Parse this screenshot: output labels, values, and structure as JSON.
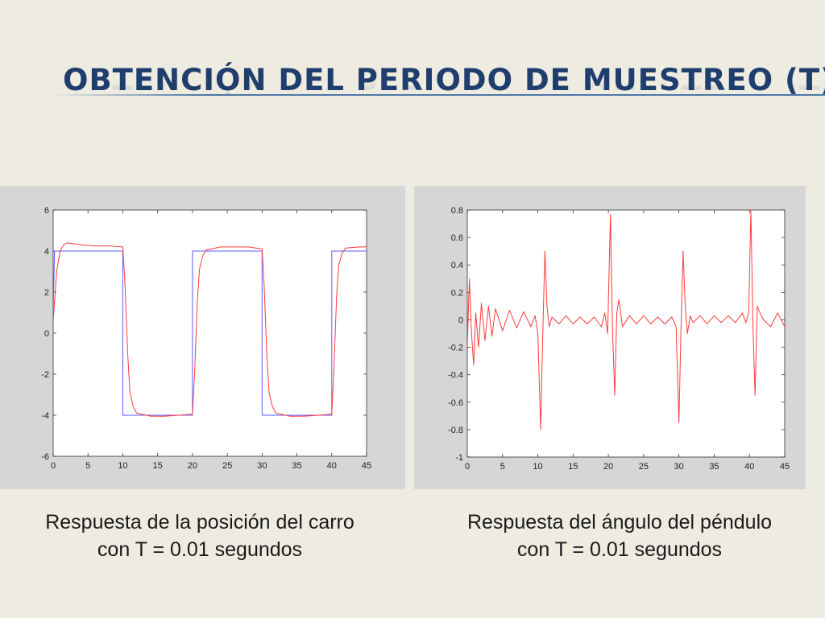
{
  "slide": {
    "title": "OBTENCIÓN DEL PERIODO DE MUESTREO (T)"
  },
  "colors": {
    "background": "#eeece1",
    "title": "#1f3e6e",
    "panel": "#d6d6d6",
    "reference": "#5b5bff",
    "response": "#ff3b3b"
  },
  "captions": {
    "left": {
      "line1": "Respuesta de la posición del carro",
      "line2": "con T = 0.01 segundos"
    },
    "right": {
      "line1": "Respuesta del ángulo del péndulo",
      "line2": "con T = 0.01 segundos"
    }
  },
  "chart_data": [
    {
      "type": "line",
      "title": "",
      "xlabel": "",
      "ylabel": "",
      "xlim": [
        0,
        45
      ],
      "ylim": [
        -6,
        6
      ],
      "xticks": [
        0,
        5,
        10,
        15,
        20,
        25,
        30,
        35,
        40,
        45
      ],
      "yticks": [
        -6,
        -4,
        -2,
        0,
        2,
        4,
        6
      ],
      "grid": false,
      "legend": "none",
      "series": [
        {
          "color": "#5b5bff",
          "x": [
            0,
            0.2,
            1,
            10,
            10,
            20,
            20,
            30,
            30,
            40,
            40,
            45
          ],
          "y": [
            1.0,
            4.0,
            4.0,
            4.0,
            -4.0,
            -4.0,
            4.0,
            4.0,
            -4.0,
            -4.0,
            4.0,
            4.0
          ]
        },
        {
          "color": "#ff3b3b",
          "x": [
            0,
            0.2,
            0.5,
            1,
            1.5,
            2,
            4,
            6,
            8,
            10,
            10.3,
            10.7,
            11,
            11.5,
            12,
            14,
            16,
            18,
            20,
            20.3,
            20.7,
            21,
            21.5,
            22,
            24,
            26,
            28,
            30,
            30.3,
            30.7,
            31,
            31.5,
            32,
            34,
            36,
            38,
            40,
            40.3,
            40.7,
            41,
            41.5,
            42,
            44,
            45
          ],
          "y": [
            0.6,
            1.5,
            3.0,
            4.0,
            4.3,
            4.4,
            4.3,
            4.25,
            4.25,
            4.2,
            2.5,
            -1.0,
            -2.8,
            -3.6,
            -3.9,
            -4.05,
            -4.05,
            -4.0,
            -3.95,
            -2.0,
            1.5,
            3.1,
            3.8,
            4.05,
            4.2,
            4.2,
            4.2,
            4.1,
            2.3,
            -1.2,
            -2.9,
            -3.6,
            -3.9,
            -4.05,
            -4.05,
            -4.0,
            -3.95,
            -1.8,
            1.8,
            3.3,
            3.9,
            4.15,
            4.2,
            4.2
          ]
        }
      ]
    },
    {
      "type": "line",
      "title": "",
      "xlabel": "",
      "ylabel": "",
      "xlim": [
        0,
        45
      ],
      "ylim": [
        -1,
        0.8
      ],
      "xticks": [
        0,
        5,
        10,
        15,
        20,
        25,
        30,
        35,
        40,
        45
      ],
      "yticks": [
        -1,
        -0.8,
        -0.6,
        -0.4,
        -0.2,
        0,
        0.2,
        0.4,
        0.6,
        0.8
      ],
      "grid": false,
      "legend": "none",
      "series": [
        {
          "color": "#ff3b3b",
          "x": [
            0,
            0.3,
            0.6,
            0.9,
            1.2,
            1.6,
            2.0,
            2.5,
            3.0,
            3.5,
            4.0,
            5.0,
            6.0,
            7.0,
            8.0,
            9.0,
            9.6,
            10.0,
            10.4,
            10.7,
            11.0,
            11.3,
            11.6,
            12.0,
            13.0,
            14.0,
            15.0,
            16.0,
            17.0,
            18.0,
            19.0,
            19.5,
            19.9,
            20.3,
            20.6,
            20.9,
            21.2,
            21.5,
            22.0,
            23.0,
            24.0,
            25.0,
            26.0,
            27.0,
            28.0,
            29.0,
            29.6,
            30.0,
            30.3,
            30.6,
            30.9,
            31.2,
            31.6,
            32.0,
            33.0,
            34.0,
            35.0,
            36.0,
            37.0,
            38.0,
            39.0,
            39.5,
            39.9,
            40.2,
            40.5,
            40.8,
            41.1,
            41.5,
            42.0,
            43.0,
            44.0,
            45.0
          ],
          "y": [
            -0.2,
            0.3,
            -0.1,
            -0.33,
            0.05,
            -0.2,
            0.12,
            -0.15,
            0.1,
            -0.12,
            0.08,
            -0.08,
            0.07,
            -0.06,
            0.06,
            -0.05,
            0.03,
            -0.1,
            -0.8,
            -0.1,
            0.5,
            0.1,
            -0.05,
            0.02,
            -0.03,
            0.03,
            -0.03,
            0.02,
            -0.03,
            0.02,
            -0.05,
            0.05,
            -0.1,
            0.77,
            -0.1,
            -0.55,
            0.05,
            0.15,
            -0.05,
            0.03,
            -0.03,
            0.03,
            -0.03,
            0.02,
            -0.03,
            0.02,
            -0.05,
            -0.75,
            -0.05,
            0.5,
            0.1,
            -0.1,
            0.03,
            -0.02,
            0.03,
            -0.03,
            0.03,
            -0.02,
            0.03,
            -0.02,
            0.05,
            -0.02,
            0.05,
            0.8,
            -0.05,
            -0.55,
            0.1,
            0.05,
            0.0,
            -0.05,
            0.05,
            -0.05
          ]
        }
      ]
    }
  ]
}
